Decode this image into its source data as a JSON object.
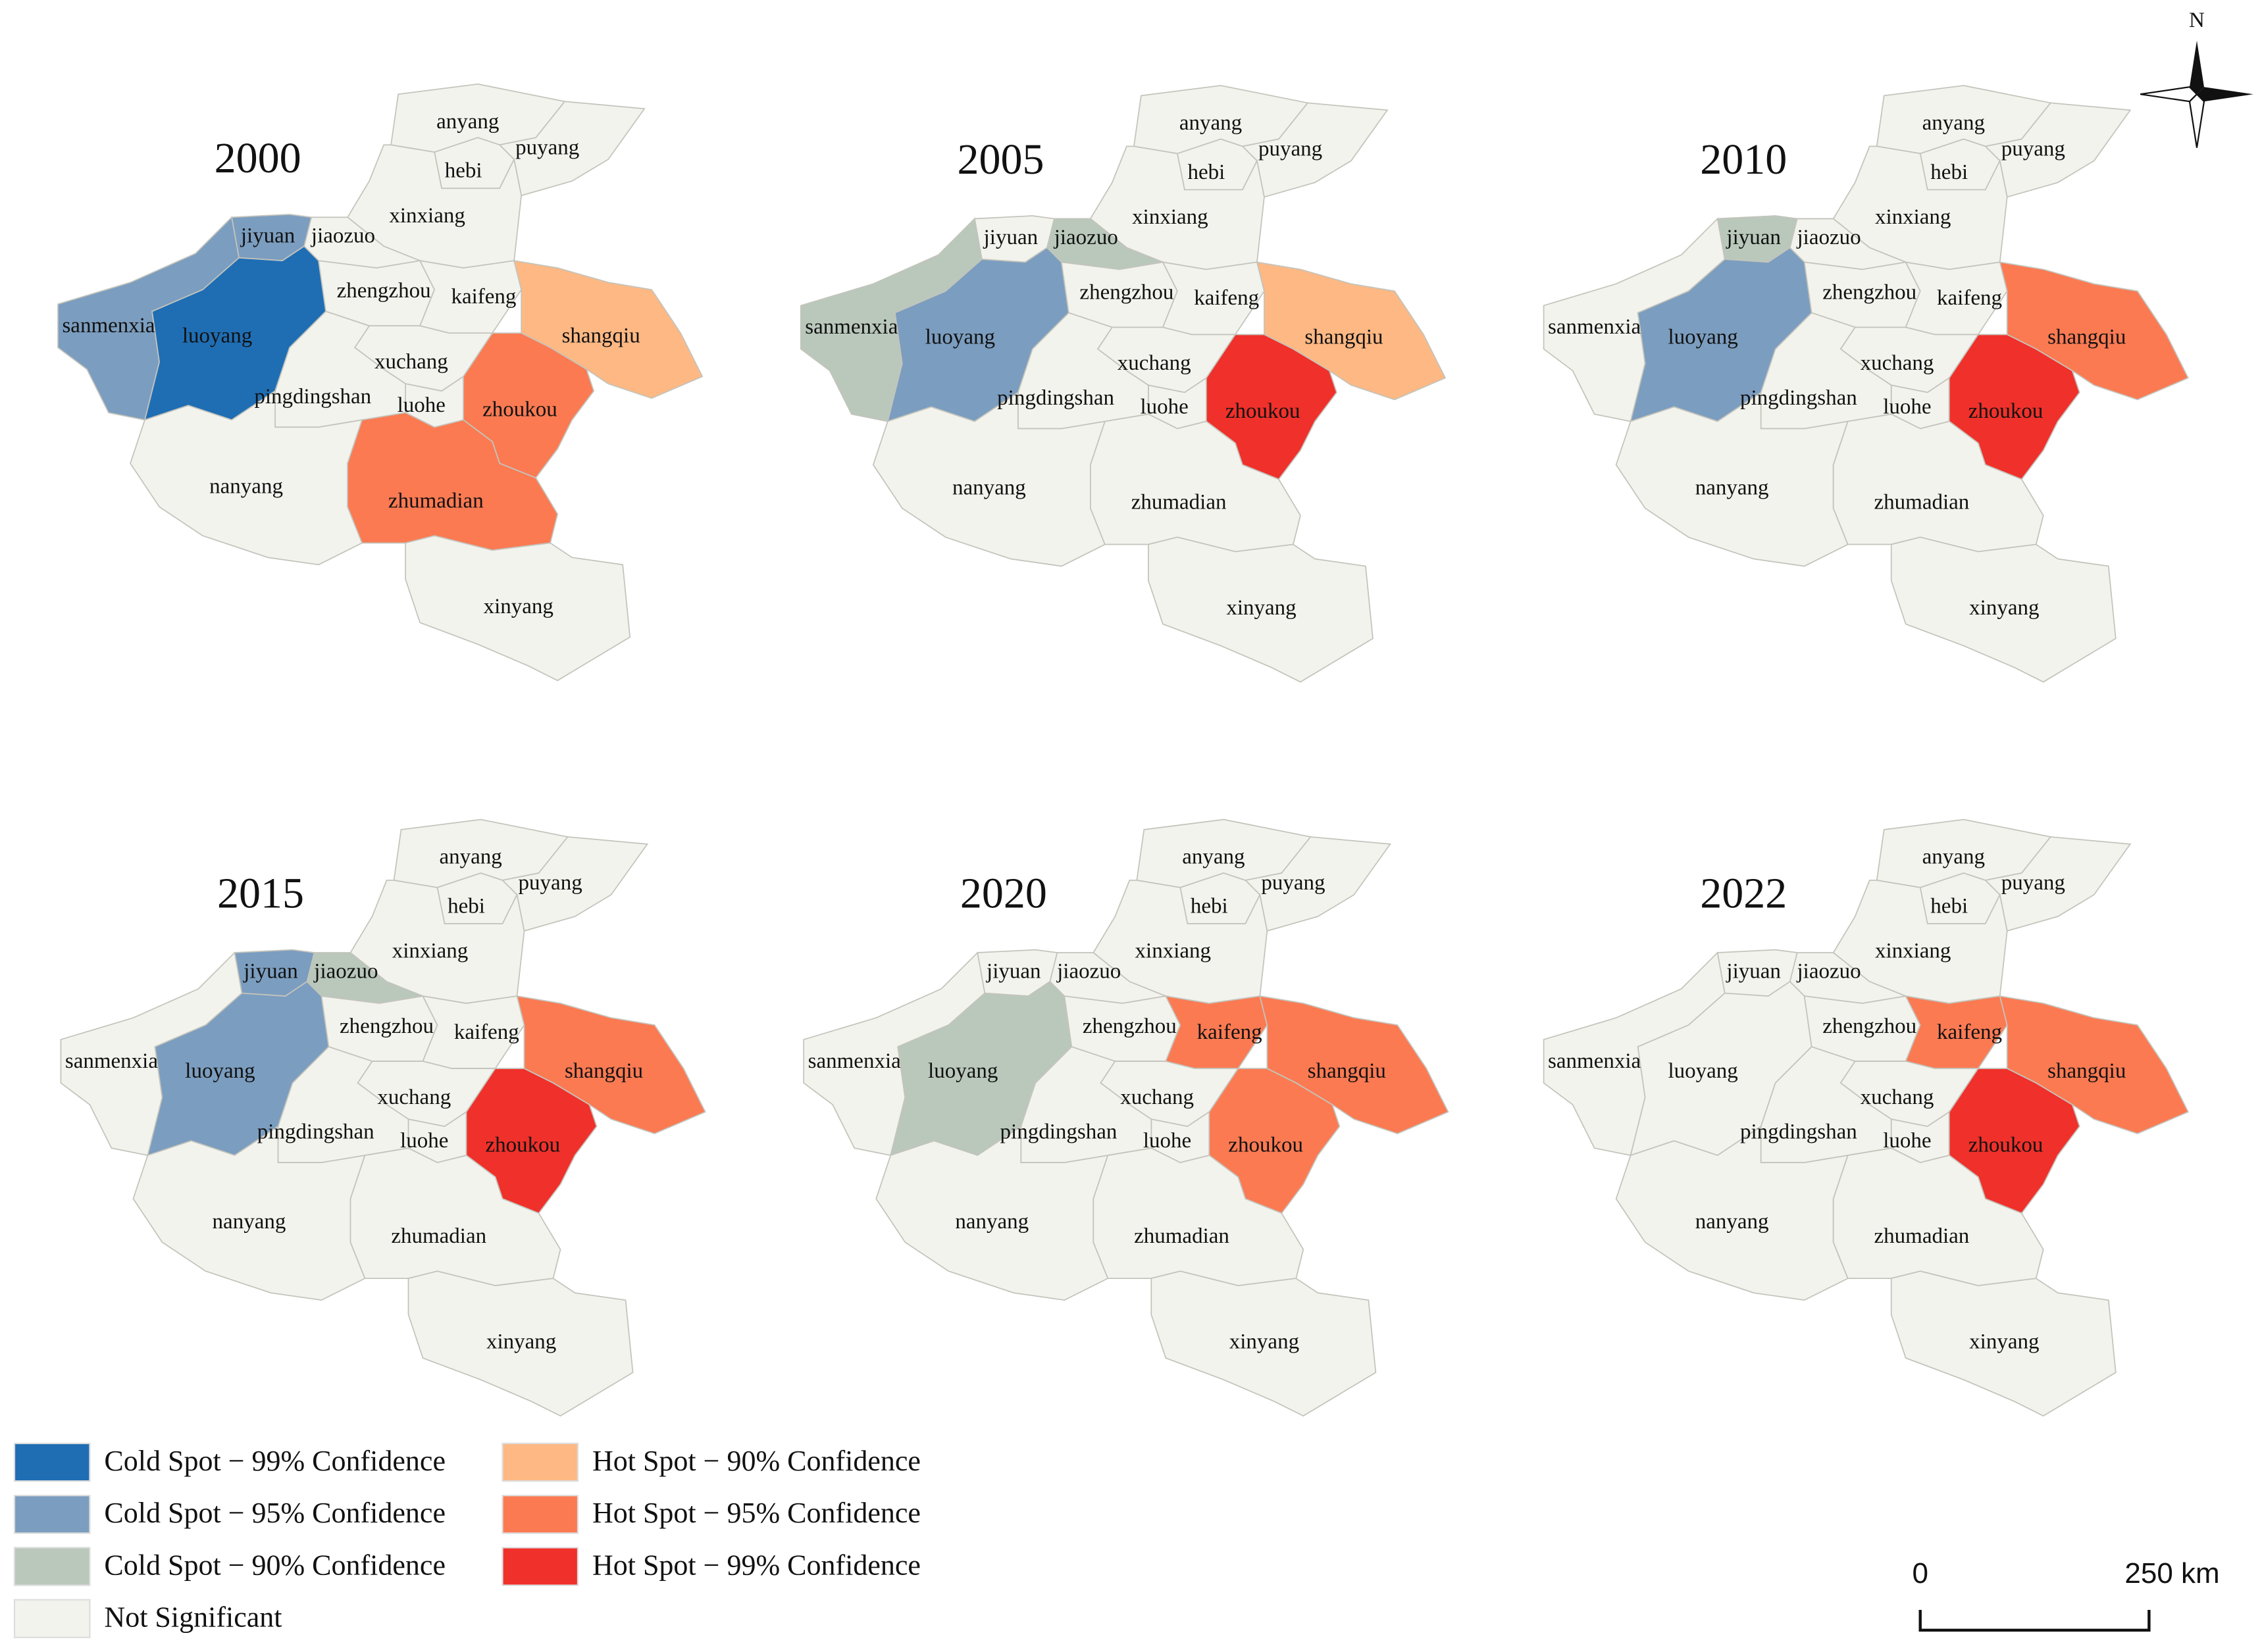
{
  "cities": [
    "anyang",
    "puyang",
    "hebi",
    "xinxiang",
    "jiaozuo",
    "jiyuan",
    "sanmenxia",
    "luoyang",
    "zhengzhou",
    "kaifeng",
    "shangqiu",
    "xuchang",
    "luohe",
    "zhoukou",
    "pingdingshan",
    "nanyang",
    "zhumadian",
    "xinyang"
  ],
  "legend": [
    {
      "label": "Cold Spot − 99% Confidence",
      "color": "#1f6eb4"
    },
    {
      "label": "Cold Spot − 95% Confidence",
      "color": "#7b9dbf"
    },
    {
      "label": "Cold Spot − 90% Confidence",
      "color": "#b9c8bb"
    },
    {
      "label": "Not Significant",
      "color": "#f3f3ee"
    },
    {
      "label": "Hot Spot − 90% Confidence",
      "color": "#fdb883"
    },
    {
      "label": "Hot Spot − 95% Confidence",
      "color": "#fb7a52"
    },
    {
      "label": "Hot Spot − 99% Confidence",
      "color": "#f0302a"
    }
  ],
  "maps": [
    {
      "year": "2000",
      "classes": [
        3,
        3,
        3,
        3,
        3,
        1,
        1,
        0,
        3,
        3,
        4,
        3,
        3,
        5,
        3,
        3,
        5,
        3
      ]
    },
    {
      "year": "2005",
      "classes": [
        3,
        3,
        3,
        3,
        2,
        3,
        2,
        1,
        3,
        3,
        4,
        3,
        3,
        6,
        3,
        3,
        3,
        3
      ]
    },
    {
      "year": "2010",
      "classes": [
        3,
        3,
        3,
        3,
        3,
        2,
        3,
        1,
        3,
        3,
        5,
        3,
        3,
        6,
        3,
        3,
        3,
        3
      ]
    },
    {
      "year": "2015",
      "classes": [
        3,
        3,
        3,
        3,
        2,
        1,
        3,
        1,
        3,
        3,
        5,
        3,
        3,
        6,
        3,
        3,
        3,
        3
      ]
    },
    {
      "year": "2020",
      "classes": [
        3,
        3,
        3,
        3,
        3,
        3,
        3,
        2,
        3,
        5,
        5,
        3,
        3,
        5,
        3,
        3,
        3,
        3
      ]
    },
    {
      "year": "2022",
      "classes": [
        3,
        3,
        3,
        3,
        3,
        3,
        3,
        3,
        3,
        5,
        5,
        3,
        3,
        6,
        3,
        3,
        3,
        3
      ]
    }
  ],
  "north": "N",
  "scale_bar": {
    "start": "0",
    "end": "250 km"
  }
}
